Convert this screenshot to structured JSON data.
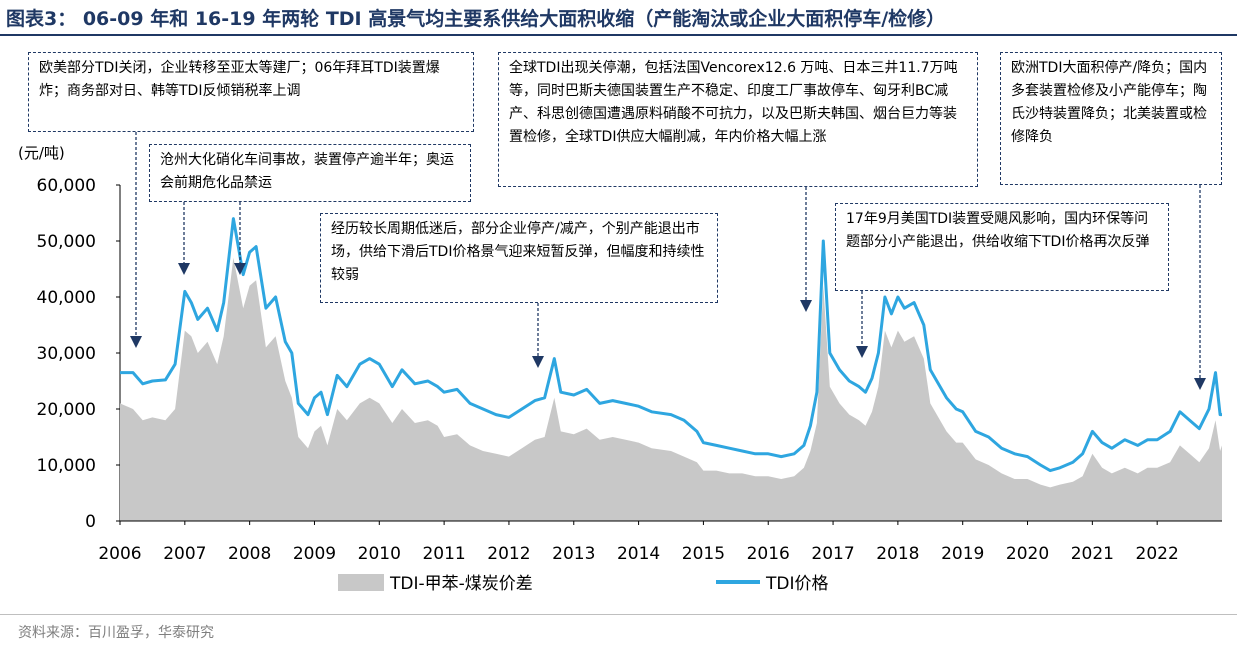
{
  "title": "图表3： 06-09 年和 16-19 年两轮 TDI 高景气均主要系供给大面积收缩（产能淘汰或企业大面积停车/检修）",
  "source": "资料来源：百川盈孚，华泰研究",
  "chart_data": {
    "type": "area",
    "unit_label": "(元/吨)",
    "ylim": [
      0,
      60000
    ],
    "yticks": [
      "60,000",
      "50,000",
      "40,000",
      "30,000",
      "20,000",
      "10,000",
      "0"
    ],
    "xlim": [
      2006,
      2023
    ],
    "xticks": [
      "2006",
      "2007",
      "2008",
      "2009",
      "2010",
      "2011",
      "2012",
      "2013",
      "2014",
      "2015",
      "2016",
      "2017",
      "2018",
      "2019",
      "2020",
      "2021",
      "2022"
    ],
    "legend": [
      {
        "name": "TDI-甲苯-煤炭价差",
        "color": "#c8c8c8"
      },
      {
        "name": "TDI价格",
        "color": "#2ea6e0"
      }
    ],
    "series": [
      {
        "name": "TDI价格",
        "type": "line",
        "color": "#2ea6e0",
        "points": [
          [
            2006.0,
            26500
          ],
          [
            2006.2,
            26500
          ],
          [
            2006.35,
            24500
          ],
          [
            2006.5,
            25000
          ],
          [
            2006.7,
            25200
          ],
          [
            2006.85,
            28000
          ],
          [
            2007.0,
            41000
          ],
          [
            2007.1,
            39000
          ],
          [
            2007.2,
            36000
          ],
          [
            2007.35,
            38000
          ],
          [
            2007.5,
            34000
          ],
          [
            2007.6,
            39000
          ],
          [
            2007.75,
            54000
          ],
          [
            2007.9,
            44000
          ],
          [
            2008.0,
            48000
          ],
          [
            2008.1,
            49000
          ],
          [
            2008.25,
            38000
          ],
          [
            2008.4,
            40000
          ],
          [
            2008.55,
            32000
          ],
          [
            2008.65,
            30000
          ],
          [
            2008.75,
            21000
          ],
          [
            2008.9,
            19000
          ],
          [
            2009.0,
            22000
          ],
          [
            2009.1,
            23000
          ],
          [
            2009.2,
            19000
          ],
          [
            2009.35,
            26000
          ],
          [
            2009.5,
            24000
          ],
          [
            2009.7,
            28000
          ],
          [
            2009.85,
            29000
          ],
          [
            2010.0,
            28000
          ],
          [
            2010.2,
            24000
          ],
          [
            2010.35,
            27000
          ],
          [
            2010.55,
            24500
          ],
          [
            2010.75,
            25000
          ],
          [
            2010.9,
            24000
          ],
          [
            2011.0,
            23000
          ],
          [
            2011.2,
            23500
          ],
          [
            2011.4,
            21000
          ],
          [
            2011.6,
            20000
          ],
          [
            2011.8,
            19000
          ],
          [
            2012.0,
            18500
          ],
          [
            2012.2,
            20000
          ],
          [
            2012.4,
            21500
          ],
          [
            2012.55,
            22000
          ],
          [
            2012.7,
            29000
          ],
          [
            2012.8,
            23000
          ],
          [
            2013.0,
            22500
          ],
          [
            2013.2,
            23500
          ],
          [
            2013.4,
            21000
          ],
          [
            2013.6,
            21500
          ],
          [
            2013.8,
            21000
          ],
          [
            2014.0,
            20500
          ],
          [
            2014.2,
            19500
          ],
          [
            2014.5,
            19000
          ],
          [
            2014.7,
            18000
          ],
          [
            2014.9,
            16000
          ],
          [
            2015.0,
            14000
          ],
          [
            2015.2,
            13500
          ],
          [
            2015.4,
            13000
          ],
          [
            2015.6,
            12500
          ],
          [
            2015.8,
            12000
          ],
          [
            2016.0,
            12000
          ],
          [
            2016.2,
            11500
          ],
          [
            2016.4,
            12000
          ],
          [
            2016.55,
            13500
          ],
          [
            2016.65,
            17000
          ],
          [
            2016.75,
            23000
          ],
          [
            2016.85,
            50000
          ],
          [
            2016.95,
            30000
          ],
          [
            2017.1,
            27000
          ],
          [
            2017.25,
            25000
          ],
          [
            2017.4,
            24000
          ],
          [
            2017.5,
            23000
          ],
          [
            2017.6,
            25500
          ],
          [
            2017.7,
            30000
          ],
          [
            2017.8,
            40000
          ],
          [
            2017.9,
            37000
          ],
          [
            2018.0,
            40000
          ],
          [
            2018.1,
            38000
          ],
          [
            2018.25,
            39000
          ],
          [
            2018.4,
            35000
          ],
          [
            2018.5,
            27000
          ],
          [
            2018.6,
            25000
          ],
          [
            2018.75,
            22000
          ],
          [
            2018.9,
            20000
          ],
          [
            2019.0,
            19500
          ],
          [
            2019.2,
            16000
          ],
          [
            2019.4,
            15000
          ],
          [
            2019.6,
            13000
          ],
          [
            2019.8,
            12000
          ],
          [
            2020.0,
            11500
          ],
          [
            2020.2,
            10000
          ],
          [
            2020.35,
            9000
          ],
          [
            2020.5,
            9500
          ],
          [
            2020.7,
            10500
          ],
          [
            2020.85,
            12000
          ],
          [
            2021.0,
            16000
          ],
          [
            2021.15,
            14000
          ],
          [
            2021.3,
            13000
          ],
          [
            2021.5,
            14500
          ],
          [
            2021.7,
            13500
          ],
          [
            2021.85,
            14500
          ],
          [
            2022.0,
            14500
          ],
          [
            2022.2,
            16000
          ],
          [
            2022.35,
            19500
          ],
          [
            2022.5,
            18000
          ],
          [
            2022.65,
            16500
          ],
          [
            2022.8,
            20000
          ],
          [
            2022.9,
            26500
          ],
          [
            2022.97,
            19000
          ],
          [
            2023.0,
            19000
          ]
        ]
      },
      {
        "name": "TDI-甲苯-煤炭价差",
        "type": "area",
        "color": "#c8c8c8",
        "points": [
          [
            2006.0,
            21000
          ],
          [
            2006.2,
            20000
          ],
          [
            2006.35,
            18000
          ],
          [
            2006.5,
            18500
          ],
          [
            2006.7,
            18000
          ],
          [
            2006.85,
            20000
          ],
          [
            2007.0,
            34000
          ],
          [
            2007.1,
            33000
          ],
          [
            2007.2,
            30000
          ],
          [
            2007.35,
            32000
          ],
          [
            2007.5,
            28000
          ],
          [
            2007.6,
            33000
          ],
          [
            2007.75,
            47000
          ],
          [
            2007.9,
            38000
          ],
          [
            2008.0,
            42000
          ],
          [
            2008.1,
            43000
          ],
          [
            2008.25,
            31000
          ],
          [
            2008.4,
            33000
          ],
          [
            2008.55,
            25000
          ],
          [
            2008.65,
            22000
          ],
          [
            2008.75,
            15000
          ],
          [
            2008.9,
            13000
          ],
          [
            2009.0,
            16000
          ],
          [
            2009.1,
            17000
          ],
          [
            2009.2,
            13500
          ],
          [
            2009.35,
            20000
          ],
          [
            2009.5,
            18000
          ],
          [
            2009.7,
            21000
          ],
          [
            2009.85,
            22000
          ],
          [
            2010.0,
            21000
          ],
          [
            2010.2,
            17500
          ],
          [
            2010.35,
            20000
          ],
          [
            2010.55,
            17500
          ],
          [
            2010.75,
            18000
          ],
          [
            2010.9,
            17000
          ],
          [
            2011.0,
            15000
          ],
          [
            2011.2,
            15500
          ],
          [
            2011.4,
            13500
          ],
          [
            2011.6,
            12500
          ],
          [
            2011.8,
            12000
          ],
          [
            2012.0,
            11500
          ],
          [
            2012.2,
            13000
          ],
          [
            2012.4,
            14500
          ],
          [
            2012.55,
            15000
          ],
          [
            2012.7,
            22000
          ],
          [
            2012.8,
            16000
          ],
          [
            2013.0,
            15500
          ],
          [
            2013.2,
            16500
          ],
          [
            2013.4,
            14500
          ],
          [
            2013.6,
            15000
          ],
          [
            2013.8,
            14500
          ],
          [
            2014.0,
            14000
          ],
          [
            2014.2,
            13000
          ],
          [
            2014.5,
            12500
          ],
          [
            2014.7,
            11500
          ],
          [
            2014.9,
            10500
          ],
          [
            2015.0,
            9000
          ],
          [
            2015.2,
            9000
          ],
          [
            2015.4,
            8500
          ],
          [
            2015.6,
            8500
          ],
          [
            2015.8,
            8000
          ],
          [
            2016.0,
            8000
          ],
          [
            2016.2,
            7500
          ],
          [
            2016.4,
            8000
          ],
          [
            2016.55,
            9500
          ],
          [
            2016.65,
            12500
          ],
          [
            2016.75,
            17500
          ],
          [
            2016.85,
            42000
          ],
          [
            2016.95,
            24000
          ],
          [
            2017.1,
            21000
          ],
          [
            2017.25,
            19000
          ],
          [
            2017.4,
            18000
          ],
          [
            2017.5,
            17000
          ],
          [
            2017.6,
            19500
          ],
          [
            2017.7,
            24000
          ],
          [
            2017.8,
            34000
          ],
          [
            2017.9,
            31000
          ],
          [
            2018.0,
            34000
          ],
          [
            2018.1,
            32000
          ],
          [
            2018.25,
            33000
          ],
          [
            2018.4,
            29000
          ],
          [
            2018.5,
            21000
          ],
          [
            2018.6,
            19000
          ],
          [
            2018.75,
            16000
          ],
          [
            2018.9,
            14000
          ],
          [
            2019.0,
            14000
          ],
          [
            2019.2,
            11000
          ],
          [
            2019.4,
            10000
          ],
          [
            2019.6,
            8500
          ],
          [
            2019.8,
            7500
          ],
          [
            2020.0,
            7500
          ],
          [
            2020.2,
            6500
          ],
          [
            2020.35,
            6000
          ],
          [
            2020.5,
            6500
          ],
          [
            2020.7,
            7000
          ],
          [
            2020.85,
            8000
          ],
          [
            2021.0,
            12000
          ],
          [
            2021.15,
            9500
          ],
          [
            2021.3,
            8500
          ],
          [
            2021.5,
            9500
          ],
          [
            2021.7,
            8500
          ],
          [
            2021.85,
            9500
          ],
          [
            2022.0,
            9500
          ],
          [
            2022.2,
            10500
          ],
          [
            2022.35,
            13500
          ],
          [
            2022.5,
            12000
          ],
          [
            2022.65,
            10500
          ],
          [
            2022.8,
            13000
          ],
          [
            2022.9,
            18000
          ],
          [
            2022.97,
            12500
          ],
          [
            2023.0,
            13500
          ]
        ]
      }
    ],
    "annotations": [
      {
        "text": "欧美部分TDI关闭，企业转移至亚太等建厂；06年拜耳TDI装置爆炸；商务部对日、韩等TDI反倾销税率上调"
      },
      {
        "text": "沧州大化硝化车间事故，装置停产逾半年；奥运会前期危化品禁运"
      },
      {
        "text": "经历较长周期低迷后，部分企业停产/减产，个别产能退出市场，供给下滑后TDI价格景气迎来短暂反弹，但幅度和持续性较弱"
      },
      {
        "text": "全球TDI出现关停潮，包括法国Vencorex12.6 万吨、日本三井11.7万吨等，同时巴斯夫德国装置生产不稳定、印度工厂事故停车、匈牙利BC减产、科思创德国遭遇原料硝酸不可抗力，以及巴斯夫韩国、烟台巨力等装置检修，全球TDI供应大幅削减，年内价格大幅上涨"
      },
      {
        "text": "17年9月美国TDI装置受飓风影响，国内环保等问题部分小产能退出，供给收缩下TDI价格再次反弹"
      },
      {
        "text": "欧洲TDI大面积停产/降负；国内多套装置检修及小产能停车；陶氏沙特装置降负；北美装置或检修降负"
      }
    ]
  }
}
